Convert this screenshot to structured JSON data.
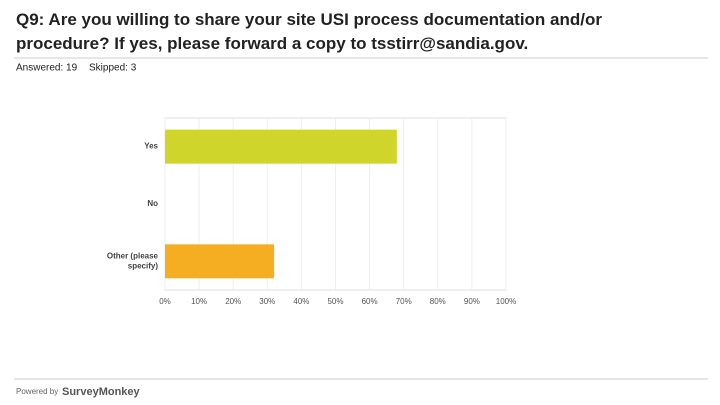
{
  "chart_data": {
    "type": "hbar",
    "title": "Q9: Are you willing to share your site USI process documentation and/or procedure? If yes, please forward a copy to tsstirr@sandia.gov.",
    "categories": [
      "Yes",
      "No",
      "Other (please specify)"
    ],
    "values": [
      68,
      0,
      32
    ],
    "colors": [
      "#d0d52b",
      "#d0d52b",
      "#f5ae22"
    ],
    "xlim": [
      0,
      100
    ],
    "xticks": [
      {
        "value": 0,
        "label": "0%"
      },
      {
        "value": 10,
        "label": "10%"
      },
      {
        "value": 20,
        "label": "20%"
      },
      {
        "value": 30,
        "label": "30%"
      },
      {
        "value": 40,
        "label": "40%"
      },
      {
        "value": 50,
        "label": "50%"
      },
      {
        "value": 60,
        "label": "60%"
      },
      {
        "value": 70,
        "label": "70%"
      },
      {
        "value": 80,
        "label": "80%"
      },
      {
        "value": 90,
        "label": "90%"
      },
      {
        "value": 100,
        "label": "100%"
      }
    ],
    "grid": true
  },
  "header": {
    "answered": "Answered: 19",
    "skipped": "Skipped: 3"
  },
  "footer": {
    "powered_by": "Powered by",
    "brand": "SurveyMonkey"
  }
}
